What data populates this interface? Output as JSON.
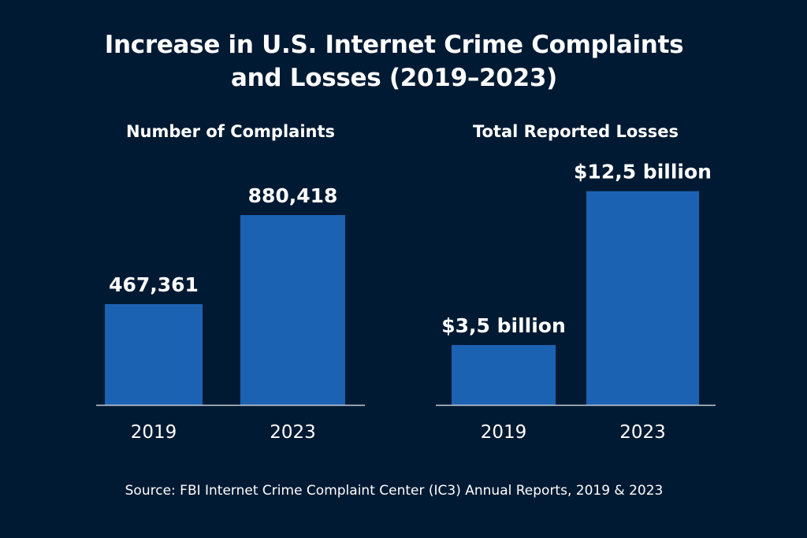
{
  "title_line1": "Increase in U.S. Internet Crime Complaints",
  "title_line2": "and Losses (2019–2023)",
  "source": "Source: FBI Internet Crime Complaint Center (IC3) Annual Reports, 2019 & 2023",
  "colors": {
    "background": "#011a33",
    "bar": "#1c62b3",
    "axis": "#c8ccd4",
    "text": "#ffffff"
  },
  "chart_data": [
    {
      "type": "bar",
      "title": "Number of Complaints",
      "categories": [
        "2019",
        "2023"
      ],
      "values": [
        467361,
        880418
      ],
      "data_labels": [
        "467,361",
        "880,418"
      ],
      "xlabel": "",
      "ylabel": "",
      "ylim": [
        0,
        950000
      ],
      "grid": false
    },
    {
      "type": "bar",
      "title": "Total Reported Losses",
      "categories": [
        "2019",
        "2023"
      ],
      "values": [
        3.5,
        12.5
      ],
      "data_labels": [
        "$3,5 billion",
        "$12,5 billion"
      ],
      "xlabel": "",
      "ylabel": "",
      "ylim": [
        0,
        13.5
      ],
      "grid": false
    }
  ]
}
